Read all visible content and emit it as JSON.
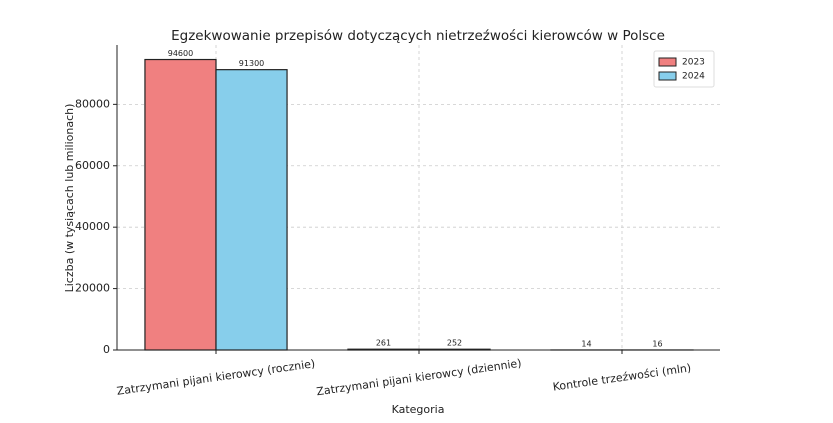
{
  "chart_data": {
    "type": "bar",
    "title": "Egzekwowanie przepisów dotyczących nietrzeźwości kierowców w Polsce",
    "x_label": "Kategoria",
    "y_label": "Liczba (w tysiącach lub milionach)",
    "categories": [
      "Zatrzymani pijani kierowcy (rocznie)",
      "Zatrzymani pijani kierowcy (dziennie)",
      "Kontrole trzeźwości (mln)"
    ],
    "series": [
      {
        "name": "2023",
        "color": "#f08080",
        "values": [
          94600,
          261,
          14
        ]
      },
      {
        "name": "2024",
        "color": "#87ceeb",
        "values": [
          91300,
          252,
          16
        ]
      }
    ],
    "ylim": [
      0,
      99330
    ],
    "yticks": [
      0,
      20000,
      40000,
      60000,
      80000
    ],
    "grid": true,
    "legend": "upper-right"
  }
}
